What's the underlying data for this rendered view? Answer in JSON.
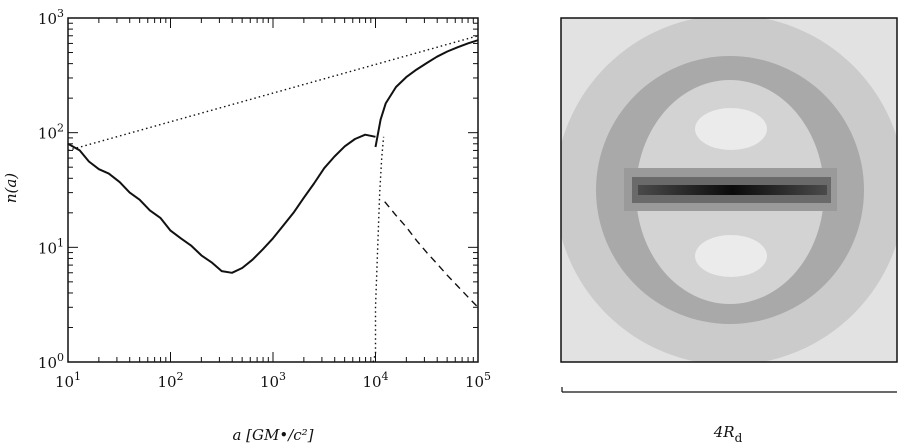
{
  "chart_data": [
    {
      "type": "line",
      "xscale": "log",
      "yscale": "log",
      "xlim": [
        10,
        100000
      ],
      "ylim": [
        1,
        1000
      ],
      "xlabel": "a [GM•/c²]",
      "ylabel": "n(a)",
      "xticks": [
        {
          "base": "10",
          "exp": "1",
          "value": 10
        },
        {
          "base": "10",
          "exp": "2",
          "value": 100
        },
        {
          "base": "10",
          "exp": "3",
          "value": 1000
        },
        {
          "base": "10",
          "exp": "4",
          "value": 10000
        },
        {
          "base": "10",
          "exp": "5",
          "value": 100000
        }
      ],
      "yticks": [
        {
          "base": "10",
          "exp": "0",
          "value": 1
        },
        {
          "base": "10",
          "exp": "1",
          "value": 10
        },
        {
          "base": "10",
          "exp": "2",
          "value": 100
        },
        {
          "base": "10",
          "exp": "3",
          "value": 1000
        }
      ],
      "series": [
        {
          "style": "solid",
          "x": [
            10,
            13,
            16,
            20,
            25,
            32,
            40,
            50,
            63,
            80,
            100,
            126,
            158,
            200,
            251,
            316,
            398,
            501,
            631,
            794,
            1000,
            1259,
            1585,
            1995,
            2512,
            3162,
            3981,
            5012,
            6310,
            7943,
            10000
          ],
          "y": [
            80,
            70,
            56,
            48,
            44,
            37,
            30,
            26,
            21,
            18,
            14,
            12,
            10.4,
            8.5,
            7.4,
            6.2,
            6.0,
            6.6,
            7.8,
            9.6,
            12,
            15.5,
            20,
            27,
            36,
            49,
            62,
            76,
            88,
            96,
            92
          ]
        },
        {
          "style": "solid",
          "x": [
            10000,
            11220,
            12589,
            15849,
            19953,
            25119,
            31623,
            39811,
            50119,
            63096,
            79433,
            100000
          ],
          "y": [
            75,
            130,
            180,
            250,
            305,
            355,
            405,
            460,
            510,
            555,
            600,
            640
          ]
        },
        {
          "style": "dotted",
          "x": [
            10,
            100000
          ],
          "y": [
            70,
            700
          ]
        },
        {
          "style": "dotted",
          "x": [
            9500,
            10000,
            10000,
            10500,
            11000,
            11500,
            12000
          ],
          "y": [
            1,
            1.2,
            3,
            10,
            30,
            60,
            92
          ]
        },
        {
          "style": "dashed",
          "x": [
            12300,
            15849,
            19953,
            25119,
            31623,
            39811,
            50119,
            63096,
            79433,
            100000
          ],
          "y": [
            25,
            19,
            15,
            11.5,
            9,
            7.2,
            5.7,
            4.6,
            3.7,
            3.0
          ]
        }
      ]
    },
    {
      "type": "heatmap",
      "scale_label_main": "4R",
      "scale_label_sub": "d"
    }
  ],
  "colors": {
    "ink": "#111111",
    "panel_outer": "#e2e2e2",
    "panel_ring": "#cbcbcb",
    "panel_middle": "#a9a9a9",
    "panel_lobe": "#e8e8e8",
    "disk_core": "#1a1a1a"
  }
}
